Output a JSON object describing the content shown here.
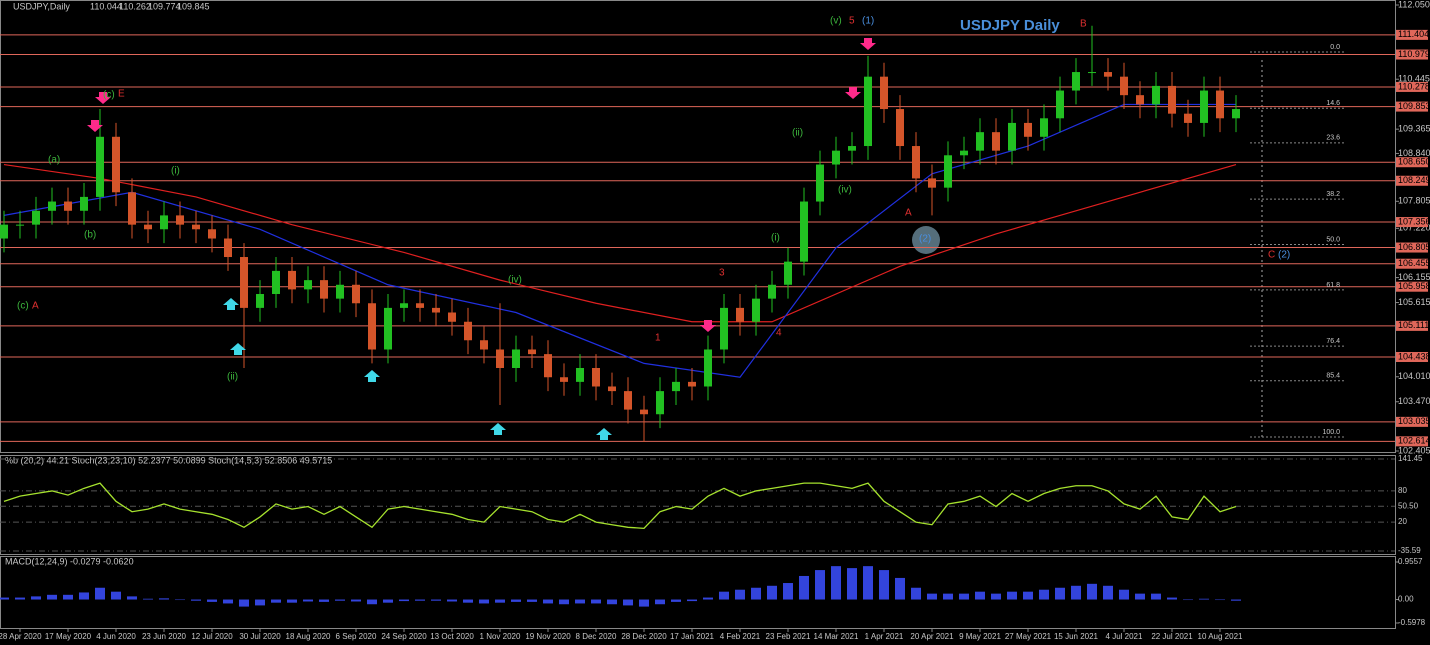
{
  "chart_data": {
    "type": "candlestick",
    "symbol": "USDJPY,Daily",
    "ohlc": [
      110.044,
      110.262,
      109.774,
      109.845
    ],
    "title": "USDJPY Daily",
    "categories": [
      null,
      "28 Apr 2020",
      null,
      null,
      "17 May 2020",
      null,
      null,
      "4 Jun 2020",
      null,
      null,
      "23 Jun 2020",
      null,
      null,
      "12 Jul 2020",
      null,
      null,
      "30 Jul 2020",
      null,
      null,
      "18 Aug 2020",
      null,
      null,
      "6 Sep 2020",
      null,
      null,
      "24 Sep 2020",
      null,
      null,
      "13 Oct 2020",
      null,
      null,
      "1 Nov 2020",
      null,
      null,
      "19 Nov 2020",
      null,
      null,
      "8 Dec 2020",
      null,
      null,
      "28 Dec 2020",
      null,
      null,
      "17 Jan 2021",
      null,
      null,
      "4 Feb 2021",
      null,
      null,
      "23 Feb 2021",
      null,
      null,
      "14 Mar 2021",
      null,
      null,
      "1 Apr 2021",
      null,
      null,
      "20 Apr 2021",
      null,
      null,
      "9 May 2021",
      null,
      null,
      "27 May 2021",
      null,
      null,
      "15 Jun 2021",
      null,
      null,
      "4 Jul 2021",
      null,
      null,
      "22 Jul 2021",
      null,
      null,
      "10 Aug 2021",
      null
    ],
    "open": [
      107.0,
      107.3,
      107.3,
      107.6,
      107.8,
      107.6,
      107.9,
      109.2,
      108.0,
      107.3,
      107.2,
      107.5,
      107.3,
      107.2,
      107.0,
      106.6,
      105.5,
      105.8,
      106.3,
      105.9,
      106.1,
      105.7,
      106.0,
      105.6,
      104.6,
      105.5,
      105.6,
      105.5,
      105.4,
      105.2,
      104.8,
      104.6,
      104.2,
      104.6,
      104.5,
      104.0,
      103.9,
      104.2,
      103.8,
      103.7,
      103.3,
      103.2,
      103.7,
      103.9,
      103.8,
      104.6,
      105.5,
      105.2,
      105.7,
      106.0,
      106.5,
      107.8,
      108.6,
      108.9,
      109.0,
      110.5,
      109.8,
      109.0,
      108.3,
      108.1,
      108.8,
      108.9,
      109.3,
      108.9,
      109.5,
      109.2,
      109.6,
      110.2,
      110.6,
      110.6,
      110.5,
      110.1,
      109.9,
      110.3,
      109.7,
      109.5,
      110.2,
      109.6
    ],
    "high": [
      107.6,
      107.6,
      107.9,
      108.1,
      108.1,
      108.2,
      109.8,
      109.5,
      108.3,
      107.6,
      107.8,
      107.8,
      107.6,
      107.5,
      107.3,
      106.9,
      106.1,
      106.6,
      106.6,
      106.4,
      106.4,
      106.3,
      106.3,
      105.9,
      105.8,
      105.9,
      105.9,
      105.8,
      105.7,
      105.5,
      105.1,
      105.6,
      104.9,
      104.9,
      104.8,
      104.3,
      104.5,
      104.5,
      104.1,
      104.0,
      103.6,
      104.0,
      104.2,
      104.2,
      104.9,
      105.8,
      105.8,
      106.0,
      106.3,
      106.8,
      108.1,
      108.9,
      109.2,
      109.3,
      110.95,
      110.8,
      110.1,
      109.3,
      108.6,
      109.1,
      109.2,
      109.6,
      109.6,
      109.8,
      109.8,
      109.9,
      110.5,
      110.9,
      111.6,
      110.9,
      110.8,
      110.4,
      110.6,
      110.6,
      110.0,
      110.5,
      110.5,
      110.1
    ],
    "low": [
      106.7,
      107.0,
      107.0,
      107.3,
      107.3,
      107.3,
      107.6,
      107.7,
      107.0,
      106.9,
      106.9,
      107.0,
      106.9,
      106.7,
      106.3,
      104.2,
      105.2,
      105.5,
      105.6,
      105.6,
      105.4,
      105.4,
      105.3,
      104.3,
      104.3,
      105.2,
      105.2,
      105.1,
      104.9,
      104.5,
      104.3,
      103.4,
      103.9,
      104.2,
      103.7,
      103.6,
      103.6,
      103.5,
      103.4,
      103.0,
      102.6,
      102.9,
      103.4,
      103.5,
      103.5,
      104.3,
      104.9,
      104.9,
      105.4,
      105.7,
      106.2,
      107.5,
      108.3,
      108.6,
      108.7,
      109.5,
      108.7,
      108.0,
      107.5,
      107.8,
      108.5,
      108.6,
      108.6,
      108.6,
      108.9,
      108.9,
      109.3,
      109.9,
      110.3,
      110.2,
      109.8,
      109.6,
      109.6,
      109.4,
      109.2,
      109.2,
      109.3,
      109.3
    ],
    "close": [
      107.3,
      107.3,
      107.6,
      107.8,
      107.6,
      107.9,
      109.2,
      108.0,
      107.3,
      107.2,
      107.5,
      107.3,
      107.2,
      107.0,
      106.6,
      105.5,
      105.8,
      106.3,
      105.9,
      106.1,
      105.7,
      106.0,
      105.6,
      104.6,
      105.5,
      105.6,
      105.5,
      105.4,
      105.2,
      104.8,
      104.6,
      104.2,
      104.6,
      104.5,
      104.0,
      103.9,
      104.2,
      103.8,
      103.7,
      103.3,
      103.2,
      103.7,
      103.9,
      103.8,
      104.6,
      105.5,
      105.2,
      105.7,
      106.0,
      106.5,
      107.8,
      108.6,
      108.9,
      109.0,
      110.5,
      109.8,
      109.0,
      108.3,
      108.1,
      108.8,
      108.9,
      109.3,
      108.9,
      109.5,
      109.2,
      109.6,
      110.2,
      110.6,
      110.6,
      110.5,
      110.1,
      109.9,
      110.3,
      109.7,
      109.5,
      110.2,
      109.6,
      109.8
    ],
    "up_color": "#22c022",
    "down_color": "#d4552a",
    "ylim": [
      102.405,
      112.05
    ],
    "yticks": [
      {
        "value": 112.05,
        "label": "112.050"
      },
      110.445,
      109.365,
      {
        "value": 108.84,
        "label": "108.840"
      },
      107.805,
      {
        "value": 107.22,
        "label": "107.220"
      },
      106.155,
      105.615,
      {
        "value": 104.01,
        "label": "104.010"
      },
      {
        "value": 103.47,
        "label": "103.470"
      },
      102.405
    ],
    "levels": [
      111.404,
      110.979,
      110.278,
      109.853,
      {
        "value": 108.65,
        "label": "108.650"
      },
      108.249,
      107.356,
      106.805,
      106.455,
      105.958,
      105.111,
      104.438,
      103.035,
      102.614
    ],
    "level_color": "#e0675a",
    "fib_levels": [
      {
        "value": 0,
        "label": "0.0"
      },
      14.6,
      23.6,
      38.2,
      {
        "value": 50,
        "label": "50.0"
      },
      61.8,
      76.4,
      85.4,
      {
        "value": 100,
        "label": "100.0"
      }
    ],
    "overlays": [
      {
        "color": "#e02020",
        "x": [
          0,
          6,
          12,
          18,
          25,
          31,
          37,
          43,
          48,
          56,
          62,
          68,
          77
        ],
        "values": [
          108.6,
          108.3,
          107.9,
          107.3,
          106.7,
          106.1,
          105.6,
          105.2,
          105.2,
          106.4,
          107.1,
          107.7,
          108.6
        ]
      },
      {
        "color": "#2030e0",
        "x": [
          0,
          8,
          16,
          24,
          32,
          40,
          46,
          52,
          58,
          64,
          70,
          77
        ],
        "values": [
          107.5,
          108.0,
          107.2,
          106.0,
          105.4,
          104.3,
          104.0,
          106.8,
          108.4,
          109.0,
          109.9,
          109.9
        ]
      }
    ],
    "annotations": [
      "(v)",
      "5",
      "(1)",
      "B",
      "E",
      "A",
      "(2)",
      "3",
      "4",
      "1",
      "C",
      "(2)",
      "(a)",
      "(b)",
      "(i)",
      "(ii)",
      "(iv)",
      "(c)",
      "A",
      "(ii)",
      "(iv)",
      "(i)",
      "(c)"
    ],
    "stoch": {
      "header": "%b (20,2) 44.21 Stoch(23,23,10) 52.2377 50.0899 Stoch(14,5,3) 52.8506 49.5715",
      "ylim": [
        -35.59,
        141.45
      ],
      "yticks": [
        141.45,
        80,
        {
          "value": 50.5,
          "label": "50.50"
        },
        20,
        -35.59
      ],
      "color": "#a6e22e",
      "values": [
        60,
        70,
        75,
        80,
        72,
        85,
        95,
        60,
        40,
        45,
        55,
        45,
        40,
        35,
        25,
        10,
        30,
        55,
        45,
        50,
        35,
        50,
        30,
        10,
        45,
        50,
        45,
        40,
        35,
        25,
        20,
        50,
        45,
        40,
        25,
        20,
        35,
        20,
        15,
        10,
        8,
        40,
        50,
        45,
        70,
        85,
        70,
        80,
        85,
        90,
        95,
        95,
        90,
        85,
        95,
        60,
        40,
        20,
        15,
        55,
        60,
        70,
        50,
        75,
        60,
        75,
        85,
        90,
        90,
        80,
        55,
        45,
        70,
        30,
        25,
        70,
        40,
        50
      ]
    },
    "macd": {
      "header": "MACD(12,24,9) -0.0279 -0.0620",
      "ylim": [
        -0.5978,
        0.9557
      ],
      "yticks": [
        0.9557,
        {
          "value": 0,
          "label": "0.00"
        },
        -0.5978
      ],
      "color": "#3344dd",
      "values": [
        0.05,
        0.05,
        0.08,
        0.12,
        0.12,
        0.18,
        0.3,
        0.2,
        0.08,
        0.02,
        0.03,
        0.0,
        -0.03,
        -0.06,
        -0.1,
        -0.18,
        -0.15,
        -0.08,
        -0.08,
        -0.05,
        -0.06,
        -0.03,
        -0.05,
        -0.12,
        -0.08,
        -0.04,
        -0.03,
        -0.03,
        -0.05,
        -0.08,
        -0.1,
        -0.08,
        -0.06,
        -0.06,
        -0.1,
        -0.12,
        -0.1,
        -0.1,
        -0.12,
        -0.15,
        -0.18,
        -0.12,
        -0.06,
        -0.04,
        0.05,
        0.2,
        0.25,
        0.3,
        0.35,
        0.42,
        0.6,
        0.75,
        0.85,
        0.8,
        0.85,
        0.75,
        0.55,
        0.3,
        0.15,
        0.15,
        0.15,
        0.2,
        0.15,
        0.2,
        0.2,
        0.25,
        0.3,
        0.35,
        0.4,
        0.35,
        0.25,
        0.15,
        0.15,
        0.05,
        0.0,
        0.02,
        -0.01,
        -0.03
      ]
    }
  }
}
